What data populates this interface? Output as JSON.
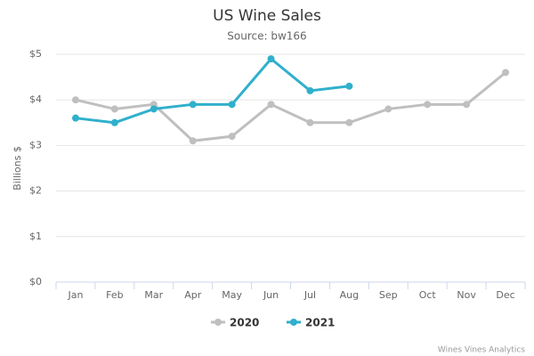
{
  "chart_data": {
    "type": "line",
    "title": "US Wine Sales",
    "subtitle": "Source: bw166",
    "y_label": "Billions $",
    "credit": "Wines Vines Analytics",
    "categories": [
      "Jan",
      "Feb",
      "Mar",
      "Apr",
      "May",
      "Jun",
      "Jul",
      "Aug",
      "Sep",
      "Oct",
      "Nov",
      "Dec"
    ],
    "series": [
      {
        "name": "2020",
        "color": "#bfbfbf",
        "values": [
          4.0,
          3.8,
          3.9,
          3.1,
          3.2,
          3.9,
          3.5,
          3.5,
          3.8,
          3.9,
          3.9,
          4.6
        ]
      },
      {
        "name": "2021",
        "color": "#2fb0cc",
        "values": [
          3.6,
          3.5,
          3.8,
          3.9,
          3.9,
          4.9,
          4.2,
          4.3,
          null,
          null,
          null,
          null
        ]
      }
    ],
    "ylim": [
      0,
      5
    ],
    "yticks": [
      {
        "value": 0,
        "label": "$0"
      },
      {
        "value": 1,
        "label": "$1"
      },
      {
        "value": 2,
        "label": "$2"
      },
      {
        "value": 3,
        "label": "$3"
      },
      {
        "value": 4,
        "label": "$4"
      },
      {
        "value": 5,
        "label": "$5"
      }
    ],
    "grid": true,
    "legend": "bottom"
  }
}
